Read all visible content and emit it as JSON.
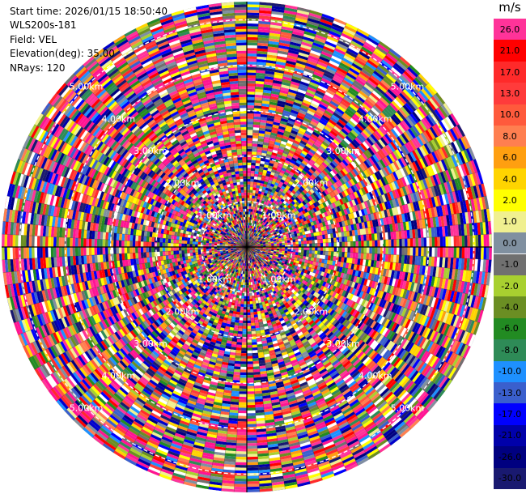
{
  "info": {
    "start_time": "Start time: 2026/01/15 18:50:40",
    "site": "WLS200s-181",
    "field": "Field: VEL",
    "elevation": "Elevation(deg): 35.00",
    "nrays": "NRays: 120"
  },
  "colorbar": {
    "unit": "m/s",
    "levels": [
      {
        "label": "26.0",
        "color": "#ff3399"
      },
      {
        "label": "21.0",
        "color": "#ff0000"
      },
      {
        "label": "17.0",
        "color": "#ff2a2a"
      },
      {
        "label": "13.0",
        "color": "#ff3b3b"
      },
      {
        "label": "10.0",
        "color": "#ff5a3c"
      },
      {
        "label": "8.0",
        "color": "#ff7f50"
      },
      {
        "label": "6.0",
        "color": "#ff9f10"
      },
      {
        "label": "4.0",
        "color": "#ffd400"
      },
      {
        "label": "2.0",
        "color": "#ffff00"
      },
      {
        "label": "1.0",
        "color": "#f0f090"
      },
      {
        "label": "0.0",
        "color": "#8090a0"
      },
      {
        "label": "-1.0",
        "color": "#707070"
      },
      {
        "label": "-2.0",
        "color": "#a8d030"
      },
      {
        "label": "-4.0",
        "color": "#6b8e23"
      },
      {
        "label": "-6.0",
        "color": "#228b22"
      },
      {
        "label": "-8.0",
        "color": "#2e8b57"
      },
      {
        "label": "-10.0",
        "color": "#1e90ff"
      },
      {
        "label": "-13.0",
        "color": "#3a5fcd"
      },
      {
        "label": "-17.0",
        "color": "#0000ff"
      },
      {
        "label": "-21.0",
        "color": "#0000aa"
      },
      {
        "label": "-26.0",
        "color": "#000080"
      },
      {
        "label": "-30.0",
        "color": "#191970"
      }
    ]
  },
  "chart_data": {
    "type": "heatmap",
    "projection": "polar-ppi",
    "field": "VEL",
    "units": "m/s",
    "nrays": 120,
    "range_rings_km": [
      1.0,
      2.0,
      3.0,
      4.0,
      5.0
    ],
    "ring_labels": [
      "1.00km",
      "2.00km",
      "3.00km",
      "4.00km",
      "5.00km"
    ],
    "max_range_km": 5.4,
    "value_range": [
      -30,
      26
    ],
    "grid": true
  }
}
